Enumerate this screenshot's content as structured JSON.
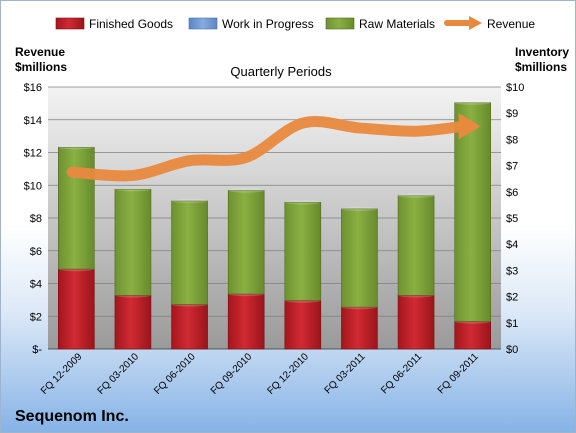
{
  "company": "Sequenom Inc.",
  "chart_data": {
    "type": "bar",
    "subtype": "stacked bar with line overlay, dual axis",
    "title": "Quarterly Periods",
    "categories": [
      "FQ 12-2009",
      "FQ 03-2010",
      "FQ 06-2010",
      "FQ 09-2010",
      "FQ 12-2010",
      "FQ 03-2011",
      "FQ 06-2011",
      "FQ 09-2011"
    ],
    "left_axis": {
      "label_line1": "Revenue",
      "label_line2": "$millions",
      "ylim": [
        0,
        16
      ],
      "tick_values": [
        0,
        2,
        4,
        6,
        8,
        10,
        12,
        14,
        16
      ],
      "tick_labels": [
        "$-",
        "$2",
        "$4",
        "$6",
        "$8",
        "$10",
        "$12",
        "$14",
        "$16"
      ]
    },
    "right_axis": {
      "label_line1": "Inventory",
      "label_line2": "$millions",
      "ylim": [
        0,
        10
      ],
      "tick_values": [
        0,
        1,
        2,
        3,
        4,
        5,
        6,
        7,
        8,
        9,
        10
      ],
      "tick_labels": [
        "$0",
        "$1",
        "$2",
        "$3",
        "$4",
        "$5",
        "$6",
        "$7",
        "$8",
        "$9",
        "$10"
      ]
    },
    "series": [
      {
        "name": "Finished Goods",
        "kind": "bar",
        "axis": "right",
        "color": "#c0202a",
        "values": [
          3.05,
          2.05,
          1.7,
          2.1,
          1.85,
          1.6,
          2.05,
          1.05
        ]
      },
      {
        "name": "Work in Progress",
        "kind": "bar",
        "axis": "right",
        "color": "#6f9ad6",
        "values": [
          0,
          0,
          0,
          0,
          0,
          0,
          0,
          0
        ]
      },
      {
        "name": "Raw Materials",
        "kind": "bar",
        "axis": "right",
        "color": "#7fa336",
        "values": [
          4.65,
          4.05,
          3.95,
          3.95,
          3.75,
          3.75,
          3.8,
          8.35
        ]
      },
      {
        "name": "Revenue",
        "kind": "line",
        "axis": "left",
        "color": "#e8893e",
        "values": [
          10.8,
          10.6,
          11.5,
          11.7,
          13.8,
          13.5,
          13.3,
          13.6
        ]
      }
    ],
    "legend_position": "top",
    "grid": true,
    "colors": {
      "plot_top": "#f3f3f3",
      "plot_bottom": "#9a9a9a",
      "gridline": "#7f7f7f"
    }
  }
}
